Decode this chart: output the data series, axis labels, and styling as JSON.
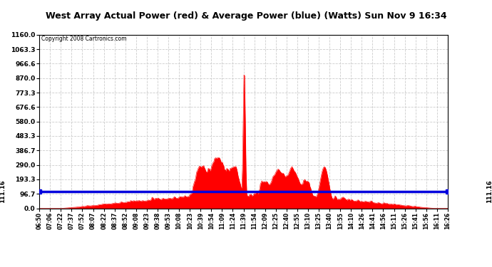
{
  "title": "West Array Actual Power (red) & Average Power (blue) (Watts) Sun Nov 9 16:34",
  "copyright": "Copyright 2008 Cartronics.com",
  "avg_power": 111.16,
  "ymax": 1160.0,
  "ymin": 0.0,
  "yticks": [
    0.0,
    96.7,
    193.3,
    290.0,
    386.7,
    483.3,
    580.0,
    676.6,
    773.3,
    870.0,
    966.6,
    1063.3,
    1160.0
  ],
  "ytick_labels": [
    "0.0",
    "96.7",
    "193.3",
    "290.0",
    "386.7",
    "483.3",
    "580.0",
    "676.6",
    "773.3",
    "870.0",
    "966.6",
    "1063.3",
    "1160.0"
  ],
  "xtick_labels": [
    "06:50",
    "07:06",
    "07:22",
    "07:37",
    "07:52",
    "08:07",
    "08:22",
    "08:37",
    "08:52",
    "09:08",
    "09:23",
    "09:38",
    "09:53",
    "10:08",
    "10:23",
    "10:39",
    "10:54",
    "11:09",
    "11:24",
    "11:39",
    "11:54",
    "12:09",
    "12:25",
    "12:40",
    "12:55",
    "13:10",
    "13:25",
    "13:40",
    "13:55",
    "14:10",
    "14:26",
    "14:41",
    "14:56",
    "15:11",
    "15:26",
    "15:41",
    "15:56",
    "16:11",
    "16:26"
  ],
  "bg_color": "#ffffff",
  "red_color": "#ff0000",
  "blue_color": "#0000dd",
  "grid_color": "#cccccc",
  "avg_label": "111.16",
  "title_bg": "#c8c8c8"
}
